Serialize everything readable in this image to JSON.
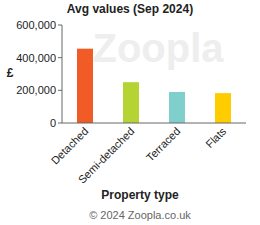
{
  "chart_data": {
    "type": "bar",
    "title": "Avg values (Sep 2024)",
    "x_label": "Property type",
    "y_label": "£",
    "categories": [
      "Detached",
      "Semi-detached",
      "Terraced",
      "Flats"
    ],
    "values": [
      455000,
      250000,
      190000,
      183000
    ],
    "colors": [
      "#f05b26",
      "#b6d334",
      "#7fcfcc",
      "#ffcc00"
    ],
    "ylim": [
      0,
      600000
    ],
    "yticks": [
      0,
      {
        "value": 200000,
        "label": "200,000"
      },
      {
        "value": 400000,
        "label": "400,000"
      },
      {
        "value": 600000,
        "label": "600,000"
      }
    ],
    "grid": false,
    "watermark": "Zoopla",
    "footer": "© 2024 Zoopla.co.uk"
  }
}
